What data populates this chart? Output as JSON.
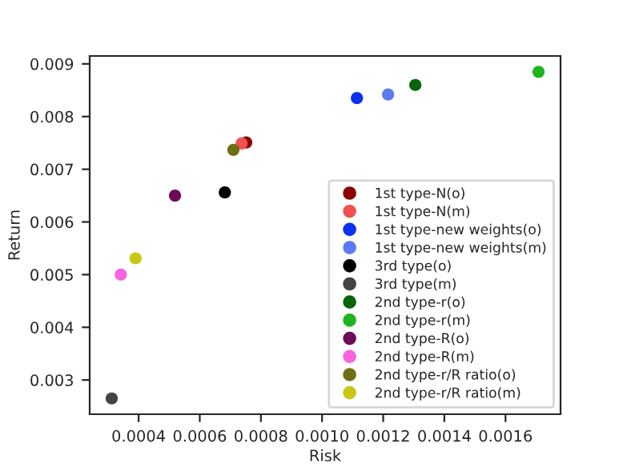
{
  "chart_data": {
    "type": "scatter",
    "xlabel": "Risk",
    "ylabel": "Return",
    "xlim": [
      0.00024,
      0.00178
    ],
    "ylim": [
      0.00235,
      0.00915
    ],
    "xticks": [
      0.0004,
      0.0006,
      0.0008,
      {
        "value": 0.001,
        "label": "0.0010"
      },
      0.0012,
      0.0014,
      0.0016
    ],
    "yticks": [
      0.003,
      0.004,
      0.005,
      0.006,
      0.007,
      0.008,
      0.009
    ],
    "grid": false,
    "legend": "bottom right",
    "marker": "circle",
    "series": [
      {
        "name": "1st type-N(o)",
        "color": "#8b0000",
        "x": [
          0.000752
        ],
        "values": [
          0.00751
        ]
      },
      {
        "name": "1st type-N(m)",
        "color": "#f05050",
        "x": [
          0.000737
        ],
        "values": [
          0.00749
        ]
      },
      {
        "name": "1st type-new weights(o)",
        "color": "#0a32f0",
        "x": [
          0.001114
        ],
        "values": [
          0.00835
        ]
      },
      {
        "name": "1st type-new weights(m)",
        "color": "#5a7af0",
        "x": [
          0.001216
        ],
        "values": [
          0.00842
        ]
      },
      {
        "name": "3rd type(o)",
        "color": "#000000",
        "x": [
          0.000682
        ],
        "values": [
          0.00656
        ]
      },
      {
        "name": "3rd type(m)",
        "color": "#444444",
        "x": [
          0.000312
        ],
        "values": [
          0.00265
        ]
      },
      {
        "name": "2nd type-r(o)",
        "color": "#0a640a",
        "x": [
          0.001305
        ],
        "values": [
          0.0086
        ]
      },
      {
        "name": "2nd type-r(m)",
        "color": "#1eb41e",
        "x": [
          0.001708
        ],
        "values": [
          0.00885
        ]
      },
      {
        "name": "2nd type-R(o)",
        "color": "#6e0a5a",
        "x": [
          0.000519
        ],
        "values": [
          0.0065
        ]
      },
      {
        "name": "2nd type-R(m)",
        "color": "#f864e0",
        "x": [
          0.000342
        ],
        "values": [
          0.005
        ]
      },
      {
        "name": "2nd type-r/R ratio(o)",
        "color": "#6e6e14",
        "x": [
          0.00071
        ],
        "values": [
          0.00737
        ]
      },
      {
        "name": "2nd type-r/R ratio(m)",
        "color": "#c8c814",
        "x": [
          0.00039
        ],
        "values": [
          0.00531
        ]
      }
    ]
  }
}
